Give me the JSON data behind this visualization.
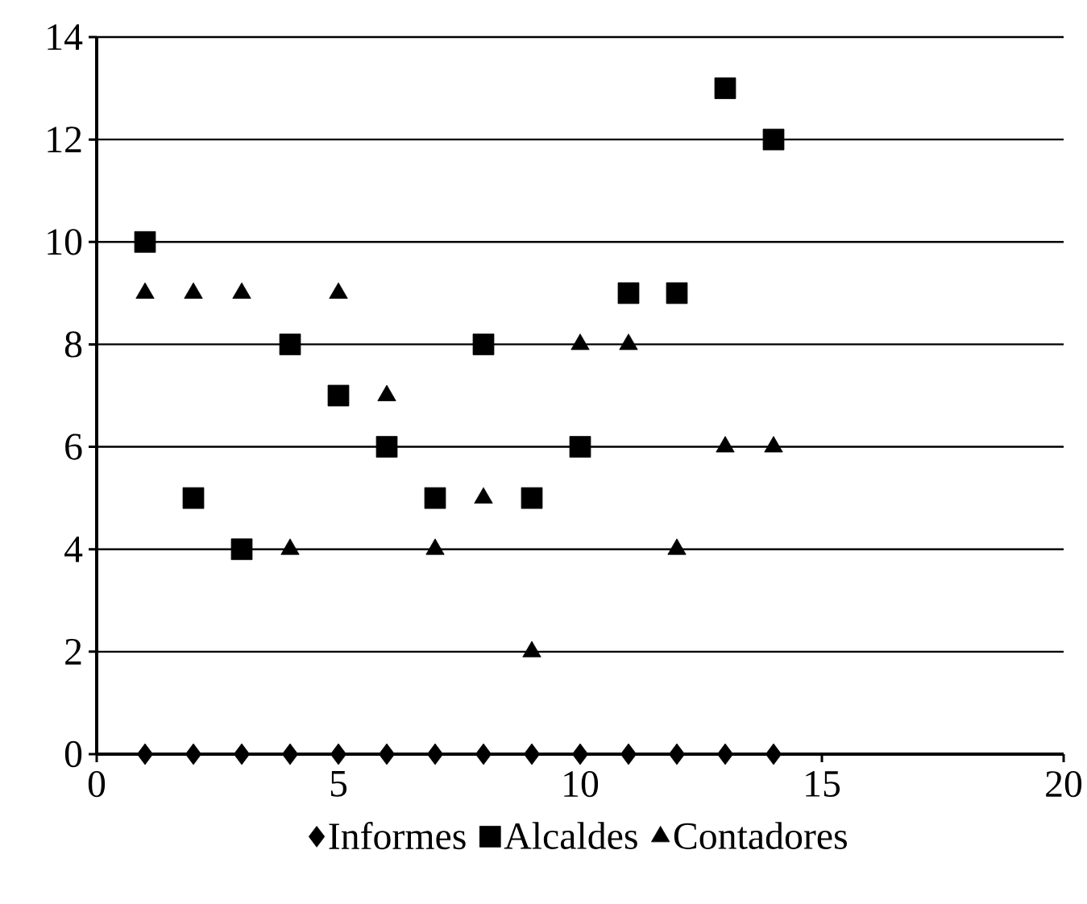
{
  "chart_data": {
    "type": "scatter",
    "x": [
      1,
      2,
      3,
      4,
      5,
      6,
      7,
      8,
      9,
      10,
      11,
      12,
      13,
      14
    ],
    "series": [
      {
        "name": "Informes",
        "color": "#000000",
        "marker": "diamond",
        "values": [
          0,
          0,
          0,
          0,
          0,
          0,
          0,
          0,
          0,
          0,
          0,
          0,
          0,
          0
        ]
      },
      {
        "name": "Alcaldes",
        "color": "#000000",
        "marker": "square",
        "values": [
          10,
          5,
          4,
          8,
          7,
          6,
          5,
          8,
          5,
          6,
          9,
          9,
          13,
          12
        ]
      },
      {
        "name": "Contadores",
        "color": "#000000",
        "marker": "triangle",
        "values": [
          9,
          9,
          9,
          4,
          9,
          7,
          4,
          5,
          2,
          8,
          8,
          4,
          6,
          6
        ]
      }
    ],
    "xlim": [
      0,
      20
    ],
    "ylim": [
      0,
      14
    ],
    "xticks": [
      0,
      5,
      10,
      15,
      20
    ],
    "yticks": [
      0,
      2,
      4,
      6,
      8,
      10,
      12,
      14
    ],
    "grid": "y",
    "legend": "bottom"
  }
}
